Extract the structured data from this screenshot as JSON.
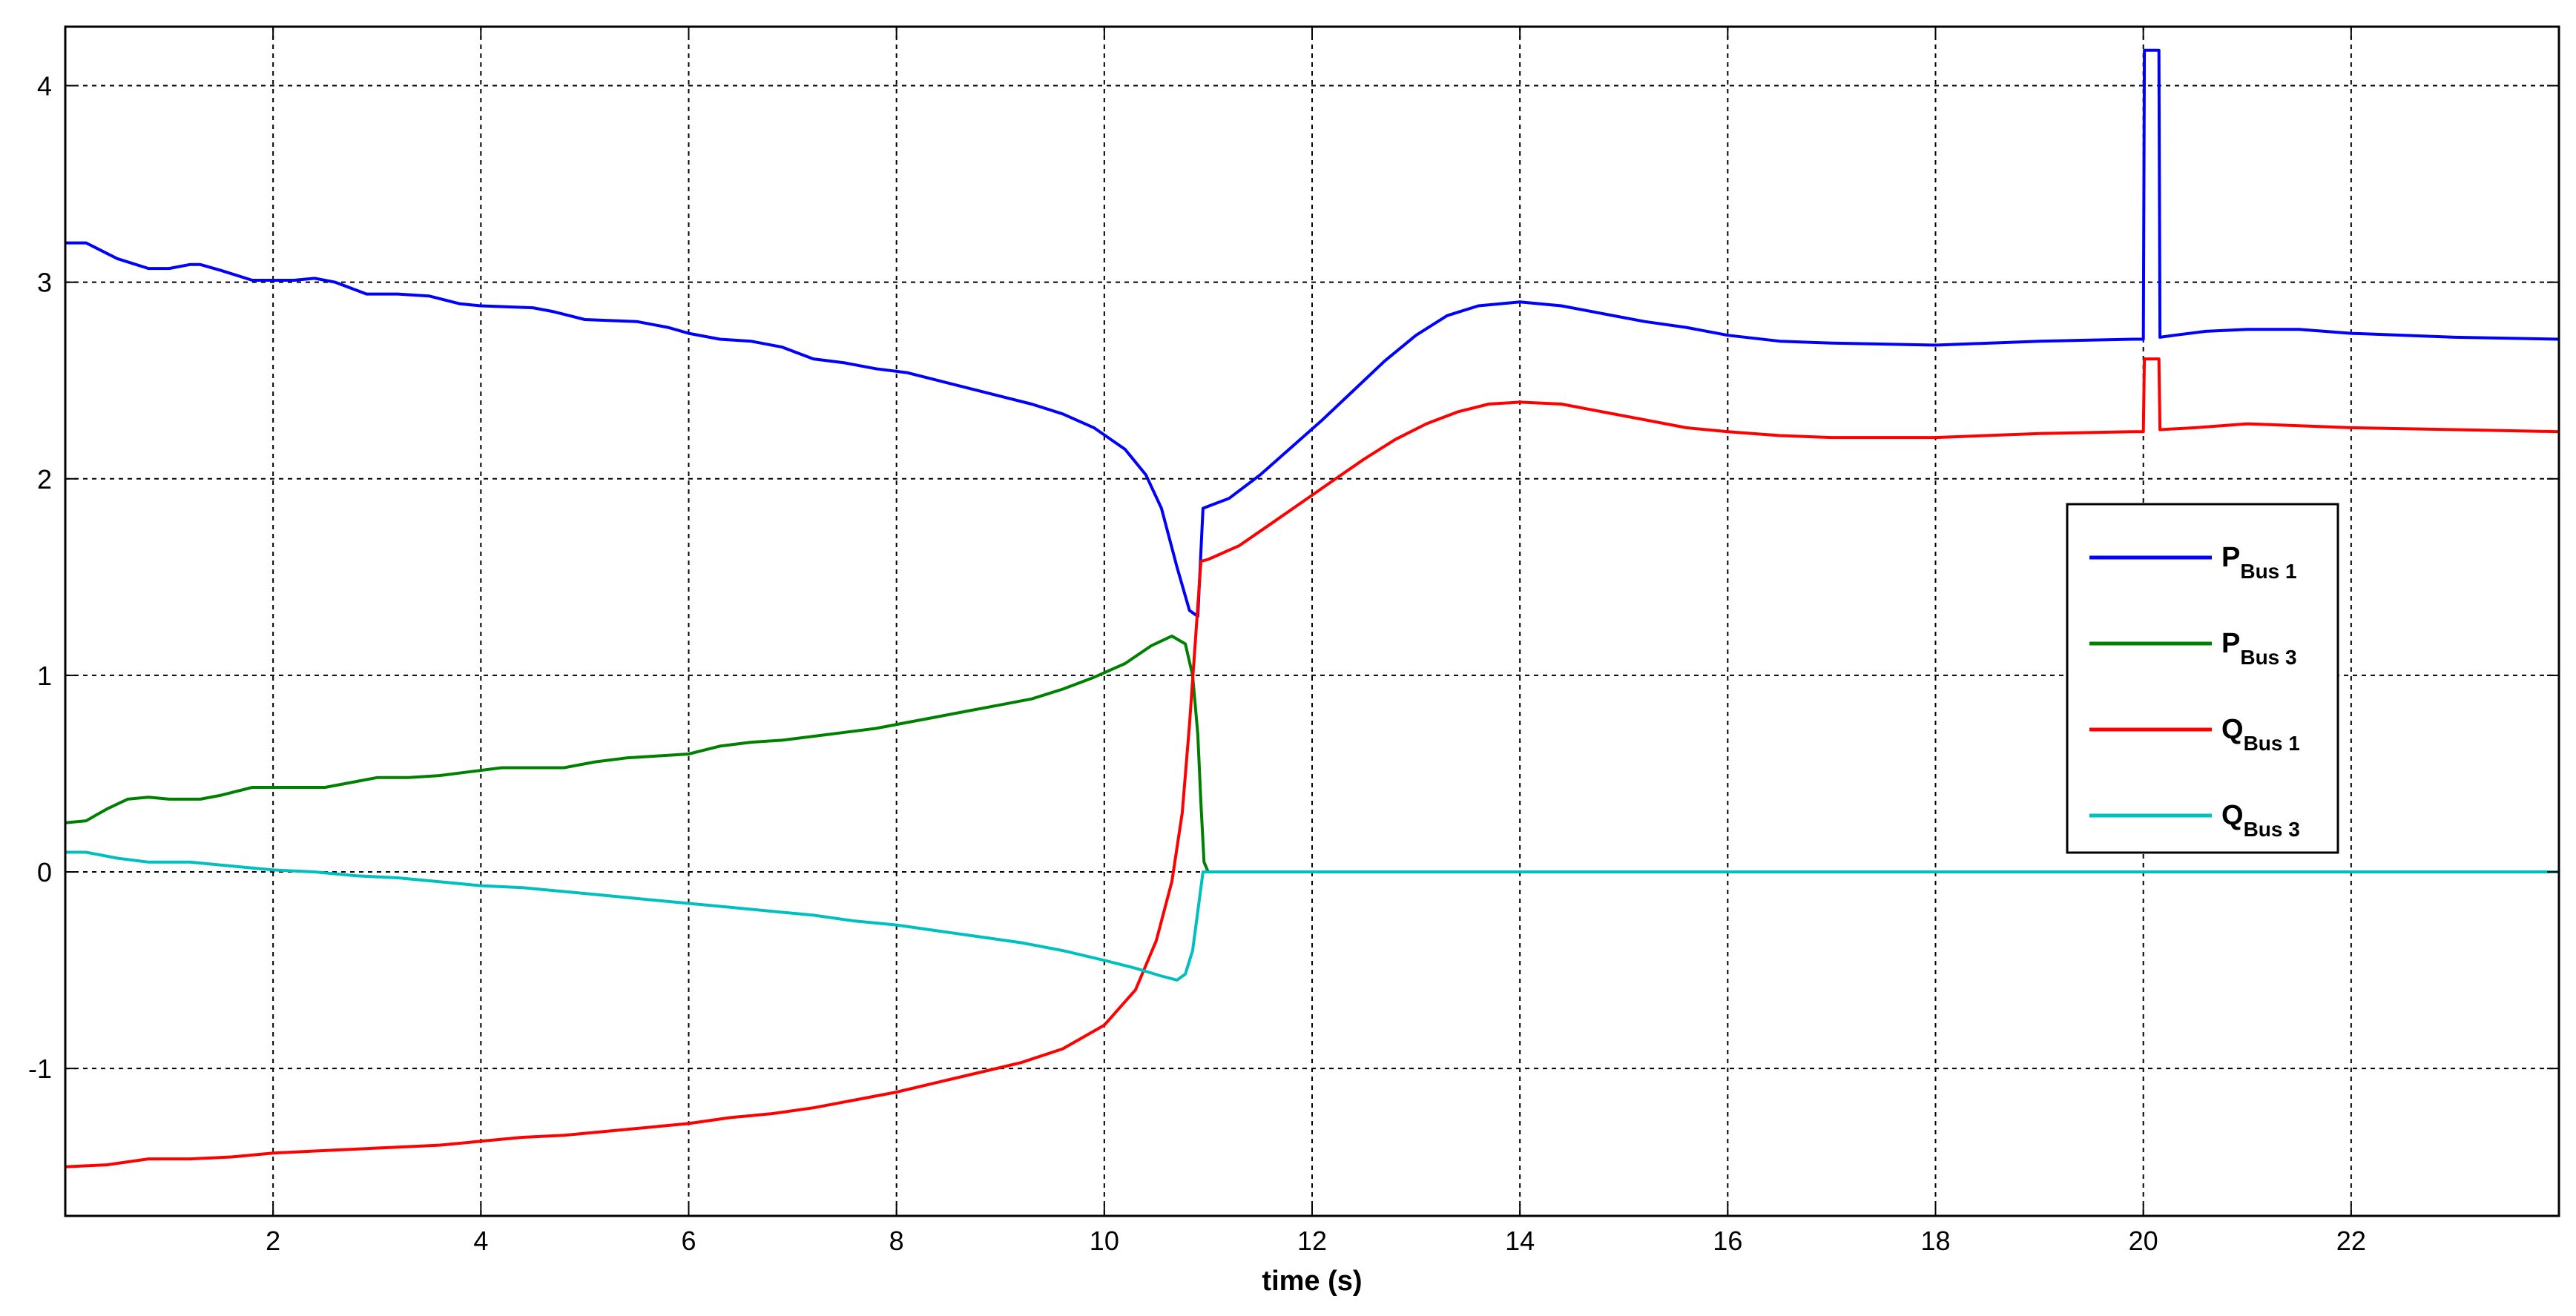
{
  "chart_data": {
    "type": "line",
    "title": "",
    "xlabel": "time (s)",
    "ylabel": "",
    "xlim": [
      0,
      24
    ],
    "ylim": [
      -1.75,
      4.3
    ],
    "xticks": [
      2,
      4,
      6,
      8,
      10,
      12,
      14,
      16,
      18,
      20,
      22
    ],
    "yticks": [
      -1,
      0,
      1,
      2,
      3,
      4
    ],
    "grid": true,
    "legend_position": "right",
    "series": [
      {
        "name": "P",
        "sub": "Bus  1",
        "color": "#0000ff",
        "points": [
          [
            0,
            3.2
          ],
          [
            0.2,
            3.2
          ],
          [
            0.5,
            3.12
          ],
          [
            0.8,
            3.07
          ],
          [
            1.0,
            3.07
          ],
          [
            1.2,
            3.09
          ],
          [
            1.3,
            3.09
          ],
          [
            1.5,
            3.06
          ],
          [
            1.8,
            3.01
          ],
          [
            2.2,
            3.01
          ],
          [
            2.4,
            3.02
          ],
          [
            2.6,
            3.0
          ],
          [
            2.9,
            2.94
          ],
          [
            3.2,
            2.94
          ],
          [
            3.5,
            2.93
          ],
          [
            3.8,
            2.89
          ],
          [
            4.0,
            2.88
          ],
          [
            4.5,
            2.87
          ],
          [
            4.7,
            2.85
          ],
          [
            5.0,
            2.81
          ],
          [
            5.5,
            2.8
          ],
          [
            5.8,
            2.77
          ],
          [
            6.0,
            2.74
          ],
          [
            6.3,
            2.71
          ],
          [
            6.6,
            2.7
          ],
          [
            6.9,
            2.67
          ],
          [
            7.2,
            2.61
          ],
          [
            7.5,
            2.59
          ],
          [
            7.8,
            2.56
          ],
          [
            8.1,
            2.54
          ],
          [
            8.4,
            2.5
          ],
          [
            8.7,
            2.46
          ],
          [
            9.0,
            2.42
          ],
          [
            9.3,
            2.38
          ],
          [
            9.6,
            2.33
          ],
          [
            9.9,
            2.26
          ],
          [
            10.2,
            2.15
          ],
          [
            10.4,
            2.02
          ],
          [
            10.55,
            1.85
          ],
          [
            10.7,
            1.55
          ],
          [
            10.82,
            1.33
          ],
          [
            10.9,
            1.3
          ],
          [
            10.95,
            1.85
          ],
          [
            11.0,
            1.86
          ],
          [
            11.2,
            1.9
          ],
          [
            11.5,
            2.02
          ],
          [
            11.8,
            2.16
          ],
          [
            12.1,
            2.3
          ],
          [
            12.4,
            2.45
          ],
          [
            12.7,
            2.6
          ],
          [
            13.0,
            2.73
          ],
          [
            13.3,
            2.83
          ],
          [
            13.6,
            2.88
          ],
          [
            14.0,
            2.9
          ],
          [
            14.4,
            2.88
          ],
          [
            14.8,
            2.84
          ],
          [
            15.2,
            2.8
          ],
          [
            15.6,
            2.77
          ],
          [
            16.0,
            2.73
          ],
          [
            16.5,
            2.7
          ],
          [
            17.0,
            2.69
          ],
          [
            18.0,
            2.68
          ],
          [
            19.0,
            2.7
          ],
          [
            19.9,
            2.71
          ],
          [
            20.0,
            2.71
          ],
          [
            20.01,
            4.18
          ],
          [
            20.15,
            4.18
          ],
          [
            20.16,
            2.72
          ],
          [
            20.3,
            2.73
          ],
          [
            20.6,
            2.75
          ],
          [
            21.0,
            2.76
          ],
          [
            21.5,
            2.76
          ],
          [
            22.0,
            2.74
          ],
          [
            23.0,
            2.72
          ],
          [
            24.0,
            2.71
          ]
        ]
      },
      {
        "name": "P",
        "sub": "Bus  3",
        "color": "#008000",
        "points": [
          [
            0,
            0.25
          ],
          [
            0.2,
            0.26
          ],
          [
            0.4,
            0.32
          ],
          [
            0.6,
            0.37
          ],
          [
            0.8,
            0.38
          ],
          [
            1.0,
            0.37
          ],
          [
            1.3,
            0.37
          ],
          [
            1.5,
            0.39
          ],
          [
            1.8,
            0.43
          ],
          [
            2.0,
            0.43
          ],
          [
            2.5,
            0.43
          ],
          [
            2.8,
            0.46
          ],
          [
            3.0,
            0.48
          ],
          [
            3.3,
            0.48
          ],
          [
            3.6,
            0.49
          ],
          [
            3.9,
            0.51
          ],
          [
            4.2,
            0.53
          ],
          [
            4.5,
            0.53
          ],
          [
            4.8,
            0.53
          ],
          [
            5.1,
            0.56
          ],
          [
            5.4,
            0.58
          ],
          [
            5.7,
            0.59
          ],
          [
            6.0,
            0.6
          ],
          [
            6.3,
            0.64
          ],
          [
            6.6,
            0.66
          ],
          [
            6.9,
            0.67
          ],
          [
            7.2,
            0.69
          ],
          [
            7.5,
            0.71
          ],
          [
            7.8,
            0.73
          ],
          [
            8.1,
            0.76
          ],
          [
            8.4,
            0.79
          ],
          [
            8.7,
            0.82
          ],
          [
            9.0,
            0.85
          ],
          [
            9.3,
            0.88
          ],
          [
            9.6,
            0.93
          ],
          [
            9.9,
            0.99
          ],
          [
            10.2,
            1.06
          ],
          [
            10.45,
            1.15
          ],
          [
            10.65,
            1.2
          ],
          [
            10.78,
            1.16
          ],
          [
            10.85,
            1.0
          ],
          [
            10.9,
            0.7
          ],
          [
            10.93,
            0.35
          ],
          [
            10.96,
            0.05
          ],
          [
            11.0,
            0.0
          ],
          [
            24.0,
            0.0
          ]
        ]
      },
      {
        "name": "Q",
        "sub": "Bus  1",
        "color": "#ff0000",
        "points": [
          [
            0,
            -1.5
          ],
          [
            0.4,
            -1.49
          ],
          [
            0.8,
            -1.46
          ],
          [
            1.2,
            -1.46
          ],
          [
            1.6,
            -1.45
          ],
          [
            2.0,
            -1.43
          ],
          [
            2.4,
            -1.42
          ],
          [
            2.8,
            -1.41
          ],
          [
            3.2,
            -1.4
          ],
          [
            3.6,
            -1.39
          ],
          [
            4.0,
            -1.37
          ],
          [
            4.4,
            -1.35
          ],
          [
            4.8,
            -1.34
          ],
          [
            5.2,
            -1.32
          ],
          [
            5.6,
            -1.3
          ],
          [
            6.0,
            -1.28
          ],
          [
            6.4,
            -1.25
          ],
          [
            6.8,
            -1.23
          ],
          [
            7.2,
            -1.2
          ],
          [
            7.6,
            -1.16
          ],
          [
            8.0,
            -1.12
          ],
          [
            8.4,
            -1.07
          ],
          [
            8.8,
            -1.02
          ],
          [
            9.2,
            -0.97
          ],
          [
            9.6,
            -0.9
          ],
          [
            10.0,
            -0.78
          ],
          [
            10.3,
            -0.6
          ],
          [
            10.5,
            -0.35
          ],
          [
            10.65,
            -0.05
          ],
          [
            10.75,
            0.3
          ],
          [
            10.82,
            0.75
          ],
          [
            10.88,
            1.2
          ],
          [
            10.93,
            1.58
          ],
          [
            11.0,
            1.59
          ],
          [
            11.3,
            1.66
          ],
          [
            11.6,
            1.77
          ],
          [
            11.9,
            1.88
          ],
          [
            12.2,
            1.99
          ],
          [
            12.5,
            2.1
          ],
          [
            12.8,
            2.2
          ],
          [
            13.1,
            2.28
          ],
          [
            13.4,
            2.34
          ],
          [
            13.7,
            2.38
          ],
          [
            14.0,
            2.39
          ],
          [
            14.4,
            2.38
          ],
          [
            14.8,
            2.34
          ],
          [
            15.2,
            2.3
          ],
          [
            15.6,
            2.26
          ],
          [
            16.0,
            2.24
          ],
          [
            16.5,
            2.22
          ],
          [
            17.0,
            2.21
          ],
          [
            18.0,
            2.21
          ],
          [
            19.0,
            2.23
          ],
          [
            19.9,
            2.24
          ],
          [
            20.0,
            2.24
          ],
          [
            20.01,
            2.61
          ],
          [
            20.15,
            2.61
          ],
          [
            20.16,
            2.25
          ],
          [
            20.5,
            2.26
          ],
          [
            21.0,
            2.28
          ],
          [
            21.5,
            2.27
          ],
          [
            22.0,
            2.26
          ],
          [
            23.0,
            2.25
          ],
          [
            24.0,
            2.24
          ]
        ]
      },
      {
        "name": "Q",
        "sub": "Bus  3",
        "color": "#00bfbf",
        "points": [
          [
            0,
            0.1
          ],
          [
            0.2,
            0.1
          ],
          [
            0.5,
            0.07
          ],
          [
            0.8,
            0.05
          ],
          [
            1.2,
            0.05
          ],
          [
            1.6,
            0.03
          ],
          [
            2.0,
            0.01
          ],
          [
            2.4,
            0.0
          ],
          [
            2.8,
            -0.02
          ],
          [
            3.2,
            -0.03
          ],
          [
            3.6,
            -0.05
          ],
          [
            4.0,
            -0.07
          ],
          [
            4.4,
            -0.08
          ],
          [
            4.8,
            -0.1
          ],
          [
            5.2,
            -0.12
          ],
          [
            5.6,
            -0.14
          ],
          [
            6.0,
            -0.16
          ],
          [
            6.4,
            -0.18
          ],
          [
            6.8,
            -0.2
          ],
          [
            7.2,
            -0.22
          ],
          [
            7.6,
            -0.25
          ],
          [
            8.0,
            -0.27
          ],
          [
            8.4,
            -0.3
          ],
          [
            8.8,
            -0.33
          ],
          [
            9.2,
            -0.36
          ],
          [
            9.6,
            -0.4
          ],
          [
            10.0,
            -0.45
          ],
          [
            10.3,
            -0.49
          ],
          [
            10.55,
            -0.53
          ],
          [
            10.7,
            -0.55
          ],
          [
            10.78,
            -0.52
          ],
          [
            10.85,
            -0.4
          ],
          [
            10.9,
            -0.2
          ],
          [
            10.95,
            0.0
          ],
          [
            11.0,
            0.0
          ],
          [
            24.0,
            0.0
          ]
        ]
      }
    ]
  }
}
